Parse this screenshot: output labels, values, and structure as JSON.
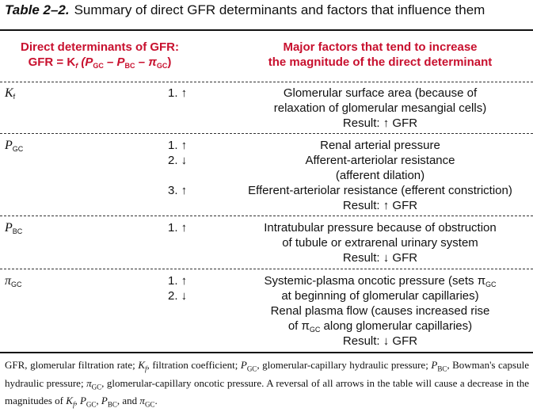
{
  "title": {
    "number": "Table 2–2.",
    "text": "Summary of direct GFR determinants and factors that influence them"
  },
  "header": {
    "left_line1": "Direct determinants of GFR:",
    "left_line2": "GFR = K",
    "left_f": "f",
    "left_open": " (P",
    "left_gc1": "GC",
    "left_minus1": " – P",
    "left_bc": "BC",
    "left_minus2": " – π",
    "left_gc2": "GC",
    "left_close": ")",
    "right_line1": "Major factors that tend to increase",
    "right_line2": "the magnitude of the direct determinant"
  },
  "rows": [
    {
      "symbol": "K",
      "symbol_sub": "f",
      "numbers": [
        "1. ↑"
      ],
      "lines": [
        "Glomerular surface area (because of",
        "relaxation of glomerular mesangial cells)",
        "Result: ↑ GFR"
      ]
    },
    {
      "symbol": "P",
      "symbol_sub": "GC",
      "numbers": [
        "1. ↑",
        "2. ↓",
        "",
        "3. ↑"
      ],
      "lines": [
        "Renal arterial pressure",
        "Afferent-arteriolar resistance",
        "(afferent dilation)",
        "Efferent-arteriolar resistance (efferent constriction)",
        "Result: ↑ GFR"
      ]
    },
    {
      "symbol": "P",
      "symbol_sub": "BC",
      "numbers": [
        "1. ↑"
      ],
      "lines": [
        "Intratubular pressure because of obstruction",
        "of tubule or extrarenal urinary system",
        "Result: ↓ GFR"
      ]
    },
    {
      "symbol": "π",
      "symbol_sub": "GC",
      "numbers": [
        "1. ↑",
        "2. ↓"
      ],
      "lines": [
        "Systemic-plasma oncotic pressure (sets π",
        "at beginning of glomerular capillaries)",
        "Renal plasma flow (causes increased rise",
        "of π",
        "Result: ↓ GFR"
      ],
      "line1_sub": "GC",
      "line4_sub": "GC",
      "line4_rest": " along glomerular capillaries)"
    }
  ],
  "footnote": {
    "text": "GFR, glomerular filtration rate; K_f, filtration coefficient; P_GC, glomerular-capillary hydraulic pressure; P_BC, Bowman's capsule hydraulic pressure; π_GC, glomerular-capillary oncotic pressure. A reversal of all arrows in the table will cause a decrease in the magnitudes of K_f, P_GC, P_BC, and π_GC.",
    "p1": "GFR, glomerular filtration rate; ",
    "p2": ", filtration coefficient; ",
    "p3": ", glomerular-capillary hydraulic pressure; ",
    "p4": ", Bowman's capsule hydraulic pressure; ",
    "p5": ", glomerular-capillary oncotic pressure. A reversal of all arrows in the table will cause a decrease in the magnitudes of ",
    "sep": ", ",
    "and": ", and ",
    "end": "."
  }
}
